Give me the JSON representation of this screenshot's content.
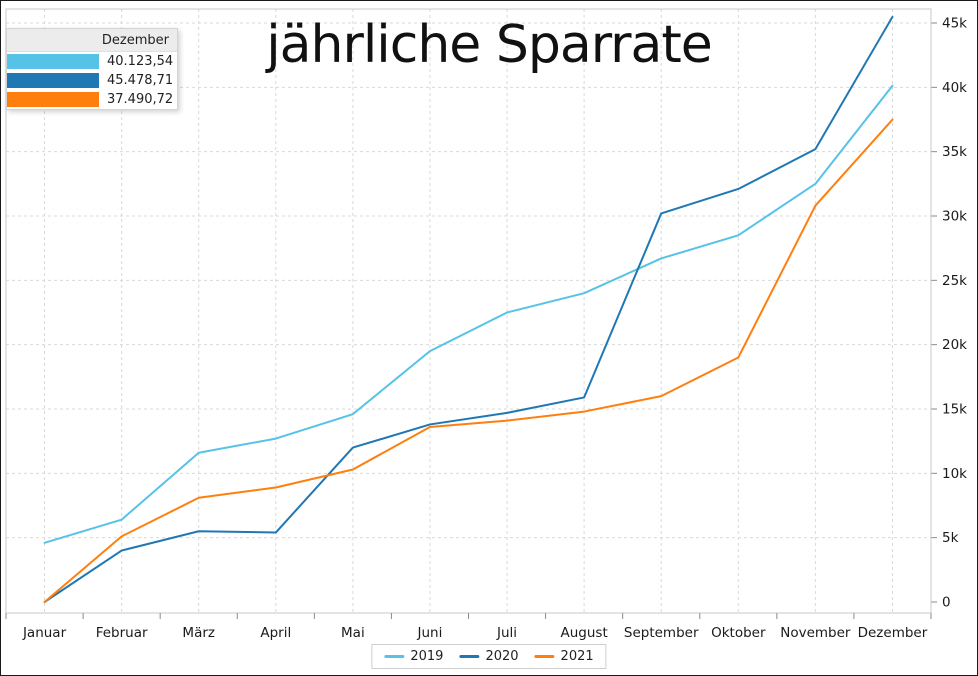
{
  "chart": {
    "title": "jährliche Sparrate"
  },
  "tooltip": {
    "header": "Dezember",
    "rows": [
      {
        "series": "2019",
        "value": "40.123,54",
        "color": "#56c2e8"
      },
      {
        "series": "2020",
        "value": "45.478,71",
        "color": "#1f77b4"
      },
      {
        "series": "2021",
        "value": "37.490,72",
        "color": "#ff7f0e"
      }
    ]
  },
  "chart_data": {
    "type": "line",
    "title": "jährliche Sparrate",
    "categories": [
      "Januar",
      "Februar",
      "März",
      "April",
      "Mai",
      "Juni",
      "Juli",
      "August",
      "September",
      "Oktober",
      "November",
      "Dezember"
    ],
    "series": [
      {
        "name": "2019",
        "color": "#56c2e8",
        "values": [
          4600,
          6400,
          11600,
          12700,
          14600,
          19500,
          22500,
          24000,
          26700,
          28500,
          32500,
          40123.54
        ]
      },
      {
        "name": "2020",
        "color": "#1f77b4",
        "values": [
          0,
          4000,
          5500,
          5400,
          12000,
          13800,
          14700,
          15900,
          30200,
          32100,
          35200,
          45478.71
        ]
      },
      {
        "name": "2021",
        "color": "#ff7f0e",
        "values": [
          0,
          5100,
          8100,
          8900,
          10300,
          13600,
          14100,
          14800,
          16000,
          19000,
          30800,
          37490.72
        ]
      }
    ],
    "ylim": [
      0,
      45000
    ],
    "y_tick_values": [
      0,
      5000,
      10000,
      15000,
      20000,
      25000,
      30000,
      35000,
      40000,
      45000
    ],
    "y_tick_labels": [
      "0",
      "5k",
      "10k",
      "15k",
      "20k",
      "25k",
      "30k",
      "35k",
      "40k",
      "45k"
    ],
    "xlabel": "",
    "ylabel": "",
    "grid": true,
    "grid_style": "dashed",
    "legend_position": "bottom",
    "y_axis_side": "right"
  },
  "colors": {
    "grid": "#d9d9d9",
    "plot_border": "#c8c8c8",
    "axis_text": "#1a1a1a",
    "tick": "#8a8a8a"
  }
}
